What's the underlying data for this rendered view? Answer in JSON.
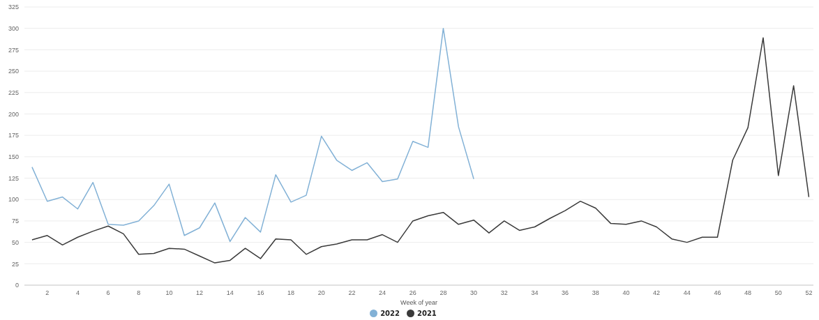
{
  "chart_data": {
    "type": "line",
    "xlabel": "Week of year",
    "x": [
      1,
      2,
      3,
      4,
      5,
      6,
      7,
      8,
      9,
      10,
      11,
      12,
      13,
      14,
      15,
      16,
      17,
      18,
      19,
      20,
      21,
      22,
      23,
      24,
      25,
      26,
      27,
      28,
      29,
      30,
      31,
      32,
      33,
      34,
      35,
      36,
      37,
      38,
      39,
      40,
      41,
      42,
      43,
      44,
      45,
      46,
      47,
      48,
      49,
      50,
      51,
      52
    ],
    "xlim": [
      0.5,
      52.3
    ],
    "xticks": [
      2,
      4,
      6,
      8,
      10,
      12,
      14,
      16,
      18,
      20,
      22,
      24,
      26,
      28,
      30,
      32,
      34,
      36,
      38,
      40,
      42,
      44,
      46,
      48,
      50,
      52
    ],
    "ylim": [
      0,
      325
    ],
    "yticks": [
      0,
      25,
      50,
      75,
      100,
      125,
      150,
      175,
      200,
      225,
      250,
      275,
      300,
      325
    ],
    "grid": "y",
    "legend": "bottom",
    "series": [
      {
        "name": "2022",
        "color": "#82b1d6",
        "x": [
          1,
          2,
          3,
          4,
          5,
          6,
          7,
          8,
          9,
          10,
          11,
          12,
          13,
          14,
          15,
          16,
          17,
          18,
          19,
          20,
          21,
          22,
          23,
          24,
          25,
          26,
          27,
          28,
          29,
          30
        ],
        "values": [
          138,
          98,
          103,
          89,
          120,
          71,
          70,
          75,
          93,
          118,
          58,
          67,
          96,
          51,
          79,
          62,
          129,
          97,
          105,
          174,
          146,
          134,
          143,
          121,
          124,
          168,
          161,
          300,
          185,
          124
        ]
      },
      {
        "name": "2021",
        "color": "#3a3a3a",
        "values": [
          53,
          58,
          47,
          56,
          63,
          69,
          60,
          36,
          37,
          43,
          42,
          34,
          26,
          29,
          43,
          31,
          54,
          53,
          36,
          45,
          48,
          53,
          53,
          59,
          50,
          75,
          81,
          85,
          71,
          76,
          61,
          75,
          64,
          68,
          78,
          87,
          98,
          90,
          72,
          71,
          75,
          68,
          54,
          50,
          56,
          56,
          146,
          184,
          289,
          128,
          233,
          103
        ]
      }
    ]
  }
}
